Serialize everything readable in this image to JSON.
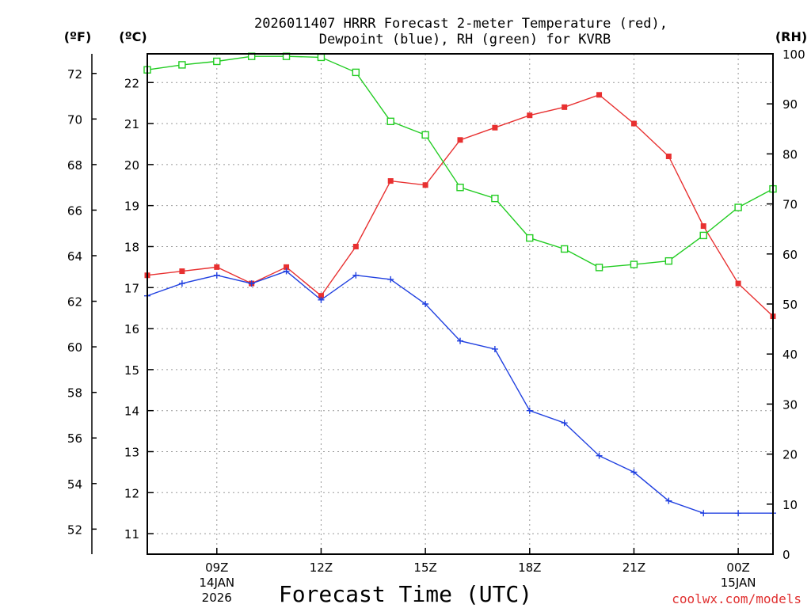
{
  "chart_data": {
    "type": "line",
    "title_line1": "2026011407 HRRR Forecast 2-meter Temperature (red),",
    "title_line2": "Dewpoint (blue), RH (green) for KVRB",
    "xlabel": "Forecast Time (UTC)",
    "credit": "coolwx.com/models",
    "units": {
      "fahrenheit": "(ºF)",
      "celsius": "(ºC)",
      "rh": "(RH)"
    },
    "x": [
      7,
      8,
      9,
      10,
      11,
      12,
      13,
      14,
      15,
      16,
      17,
      18,
      19,
      20,
      21,
      22,
      23,
      24,
      25
    ],
    "xlim": [
      7,
      25
    ],
    "x_ticks": [
      {
        "x": 9,
        "label": "09Z",
        "sub1": "14JAN",
        "sub2": "2026"
      },
      {
        "x": 12,
        "label": "12Z",
        "sub1": "",
        "sub2": ""
      },
      {
        "x": 15,
        "label": "15Z",
        "sub1": "",
        "sub2": ""
      },
      {
        "x": 18,
        "label": "18Z",
        "sub1": "",
        "sub2": ""
      },
      {
        "x": 21,
        "label": "21Z",
        "sub1": "",
        "sub2": ""
      },
      {
        "x": 24,
        "label": "00Z",
        "sub1": "15JAN",
        "sub2": ""
      }
    ],
    "ylim_c": [
      10.5,
      22.7
    ],
    "y_ticks_c": [
      "11",
      "12",
      "13",
      "14",
      "15",
      "16",
      "17",
      "18",
      "19",
      "20",
      "21",
      "22"
    ],
    "y_ticks_f": [
      "52",
      "54",
      "56",
      "58",
      "60",
      "62",
      "64",
      "66",
      "68",
      "70",
      "72"
    ],
    "y_ticks_rh": [
      "0",
      "10",
      "20",
      "30",
      "40",
      "50",
      "60",
      "70",
      "80",
      "90",
      "100"
    ],
    "ylim_rh": [
      0,
      100
    ],
    "series": [
      {
        "name": "Temperature",
        "unit": "C",
        "color": "#e83030",
        "marker": "square-filled",
        "values": [
          17.3,
          17.4,
          17.5,
          17.1,
          17.5,
          16.8,
          18.0,
          19.6,
          19.5,
          20.6,
          20.9,
          21.2,
          21.4,
          21.7,
          21.0,
          20.2,
          18.5,
          17.1,
          16.3
        ]
      },
      {
        "name": "Dewpoint",
        "unit": "C",
        "color": "#2040e0",
        "marker": "plus",
        "values": [
          16.8,
          17.1,
          17.3,
          17.1,
          17.4,
          16.7,
          17.3,
          17.2,
          16.6,
          15.7,
          15.5,
          14.0,
          13.7,
          12.9,
          12.5,
          11.8,
          11.5,
          11.5,
          11.5
        ]
      },
      {
        "name": "RH",
        "unit": "%",
        "color": "#22cc22",
        "marker": "square-open",
        "values": [
          96.8,
          97.8,
          98.5,
          99.5,
          99.5,
          99.3,
          96.3,
          86.5,
          83.8,
          73.3,
          71.1,
          63.2,
          61.0,
          57.3,
          57.9,
          58.6,
          63.7,
          69.3,
          73.0
        ]
      }
    ]
  }
}
